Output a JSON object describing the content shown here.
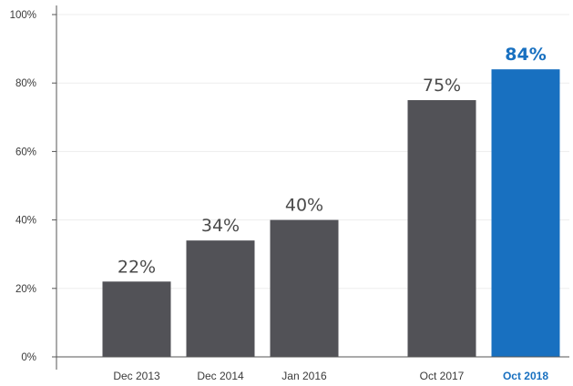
{
  "chart_data": {
    "type": "bar",
    "title": "",
    "xlabel": "",
    "ylabel": "",
    "categories": [
      "Dec 2013",
      "Dec 2014",
      "Jan 2016",
      "Oct 2017",
      "Oct 2018"
    ],
    "values": [
      22,
      34,
      40,
      75,
      84
    ],
    "data_labels": [
      "22%",
      "34%",
      "40%",
      "75%",
      "84%"
    ],
    "highlighted_category": "Oct 2018",
    "ylim": [
      0,
      100
    ],
    "y_ticks": [
      0,
      20,
      40,
      60,
      80,
      100
    ],
    "y_tick_labels": [
      "0%",
      "20%",
      "40%",
      "60%",
      "80%",
      "100%"
    ],
    "grid": true,
    "legend": "none",
    "colors": {
      "bar": "#525257",
      "highlight": "#1870c0"
    }
  }
}
